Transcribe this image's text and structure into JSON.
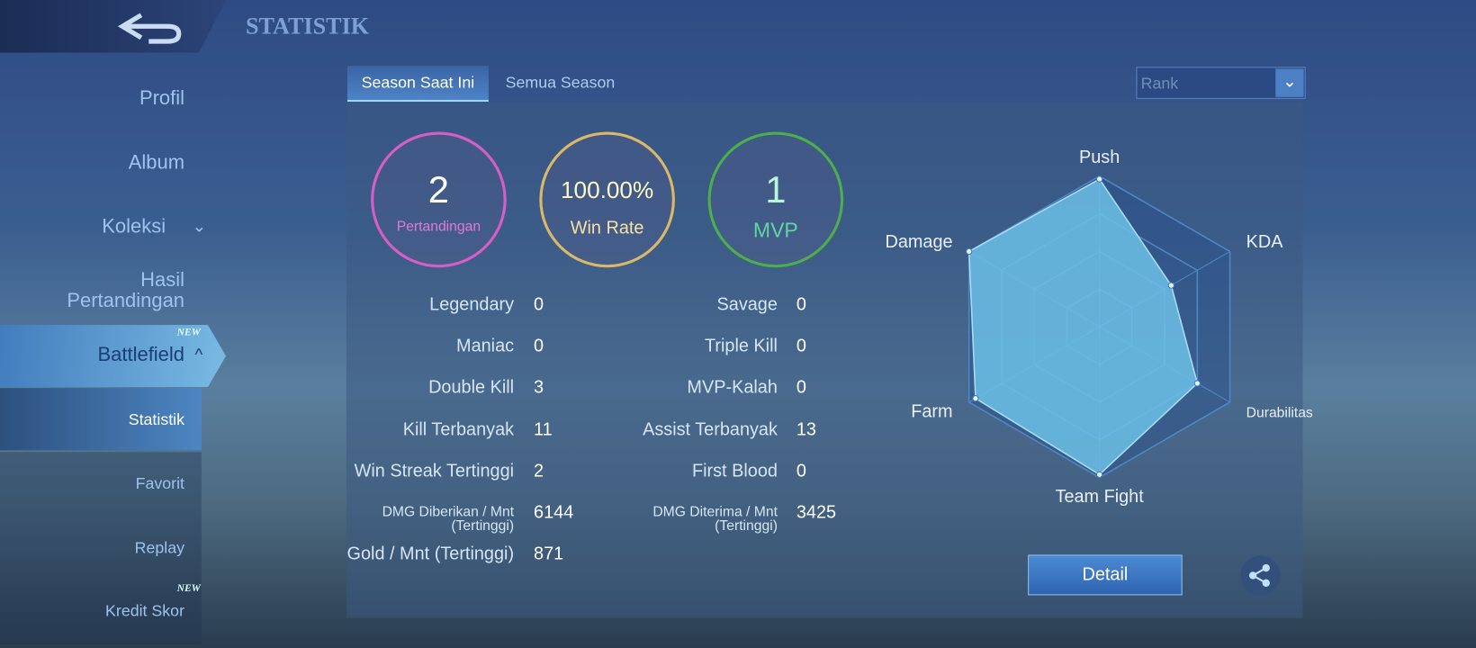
{
  "header": {
    "title": "STATISTIK"
  },
  "sidebar": {
    "items": [
      "Profil",
      "Album",
      "Koleksi",
      "Hasil Pertandingan",
      "Battlefield",
      "Statistik",
      "Favorit",
      "Replay",
      "Kredit Skor"
    ],
    "badge": "NEW"
  },
  "tabs": [
    "Season Saat Ini",
    "Semua Season"
  ],
  "dropdown": "Rank",
  "summary": [
    {
      "value": 2,
      "label": "Pertandingan"
    },
    {
      "value": "100.00%",
      "label": "Win Rate"
    },
    {
      "value": 1,
      "label": "MVP"
    }
  ],
  "stats": {
    "left": [
      [
        "Legendary",
        0
      ],
      [
        "Maniac",
        0
      ],
      [
        "Double Kill",
        3
      ],
      [
        "Kill Terbanyak",
        11
      ],
      [
        "Win Streak Tertinggi",
        2
      ],
      [
        "DMG Diberikan / Mnt (Tertinggi)",
        6144
      ],
      [
        "Gold / Mnt (Tertinggi)",
        871
      ]
    ],
    "right": [
      [
        "Savage",
        0
      ],
      [
        "Triple Kill",
        0
      ],
      [
        "MVP-Kalah",
        0
      ],
      [
        "Assist Terbanyak",
        13
      ],
      [
        "First Blood",
        0
      ],
      [
        "DMG Diterima / Mnt (Tertinggi)",
        3425
      ]
    ]
  },
  "chart_data": {
    "type": "radar",
    "categories": [
      "Push",
      "KDA",
      "Durabilitas",
      "Team Fight",
      "Farm",
      "Damage"
    ],
    "values": [
      98,
      55,
      75,
      98,
      95,
      100
    ],
    "rlim": [
      0,
      100
    ],
    "color": "#6cc0e6"
  },
  "button": "Detail"
}
